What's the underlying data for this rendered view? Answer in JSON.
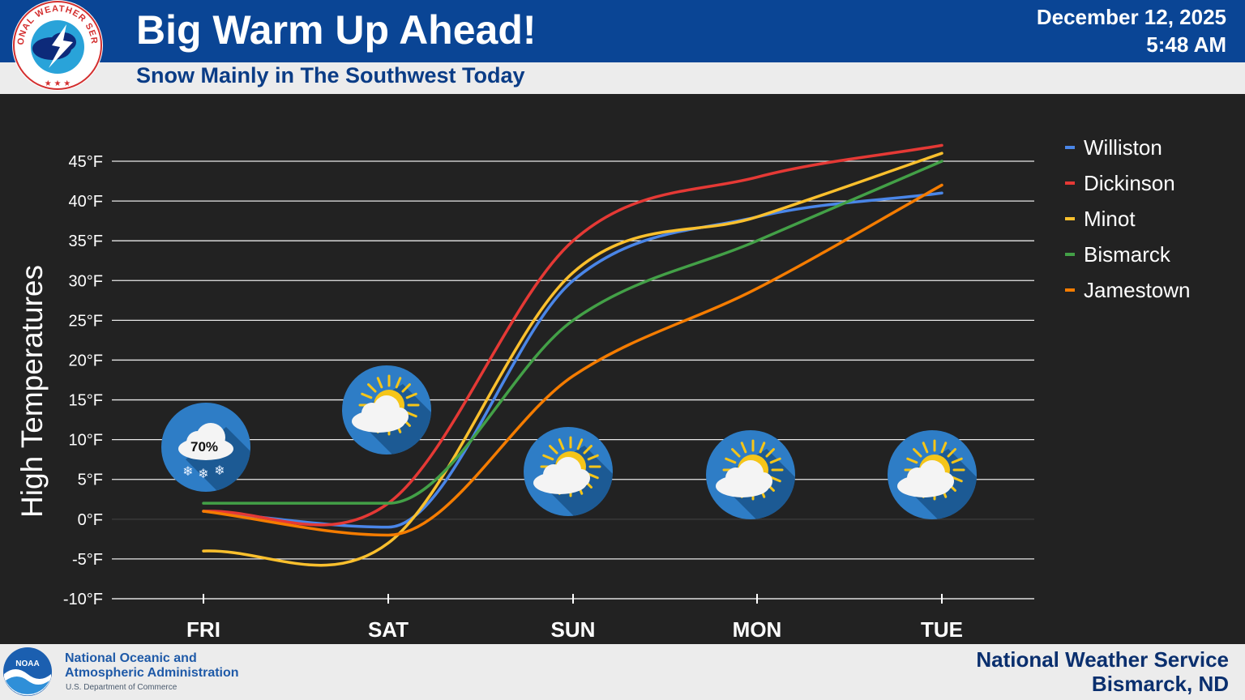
{
  "header": {
    "title": "Big Warm Up Ahead!",
    "subtitle": "Snow Mainly in The Southwest Today",
    "date": "December 12, 2025",
    "time": "5:48 AM",
    "logo_text": "NATIONAL WEATHER SERVICE"
  },
  "footer": {
    "noaa_name_line1": "National Oceanic and",
    "noaa_name_line2": "Atmospheric Administration",
    "noaa_dept": "U.S. Department of Commerce",
    "noaa_logo_text": "NOAA",
    "office_name": "National Weather Service",
    "office_location": "Bismarck, ND"
  },
  "colors": {
    "header_bg": "#0a4595",
    "panel_bg": "#222222",
    "Williston": "#4a86e8",
    "Dickinson": "#e53935",
    "Minot": "#fbc02d",
    "Bismarck": "#43a047",
    "Jamestown": "#f57c00"
  },
  "chart_data": {
    "type": "line",
    "title": "",
    "xlabel": "",
    "ylabel": "High Temperatures",
    "categories": [
      "FRI",
      "SAT",
      "SUN",
      "MON",
      "TUE"
    ],
    "y_tick_labels": [
      "45°F",
      "40°F",
      "35°F",
      "30°F",
      "25°F",
      "20°F",
      "15°F",
      "10°F",
      "5°F",
      "0°F",
      "-5°F",
      "-10°F"
    ],
    "ylim": [
      -10,
      45
    ],
    "grid": true,
    "legend_position": "right",
    "series": [
      {
        "name": "Williston",
        "color": "#4a86e8",
        "values": [
          1,
          -1,
          30,
          38,
          41
        ]
      },
      {
        "name": "Dickinson",
        "color": "#e53935",
        "values": [
          1,
          2,
          35,
          43,
          47
        ]
      },
      {
        "name": "Minot",
        "color": "#fbc02d",
        "values": [
          -4,
          -3,
          31,
          38,
          46
        ]
      },
      {
        "name": "Bismarck",
        "color": "#43a047",
        "values": [
          2,
          2,
          25,
          35,
          45
        ]
      },
      {
        "name": "Jamestown",
        "color": "#f57c00",
        "values": [
          1,
          -2,
          18,
          29,
          42
        ]
      }
    ],
    "weather_icons": [
      {
        "day": "FRI",
        "icon": "snow-cloud-icon",
        "label": "70%"
      },
      {
        "day": "SAT",
        "icon": "partly-sunny-icon",
        "label": ""
      },
      {
        "day": "SUN",
        "icon": "partly-sunny-icon",
        "label": ""
      },
      {
        "day": "MON",
        "icon": "partly-sunny-icon",
        "label": ""
      },
      {
        "day": "TUE",
        "icon": "partly-sunny-icon",
        "label": ""
      }
    ]
  }
}
